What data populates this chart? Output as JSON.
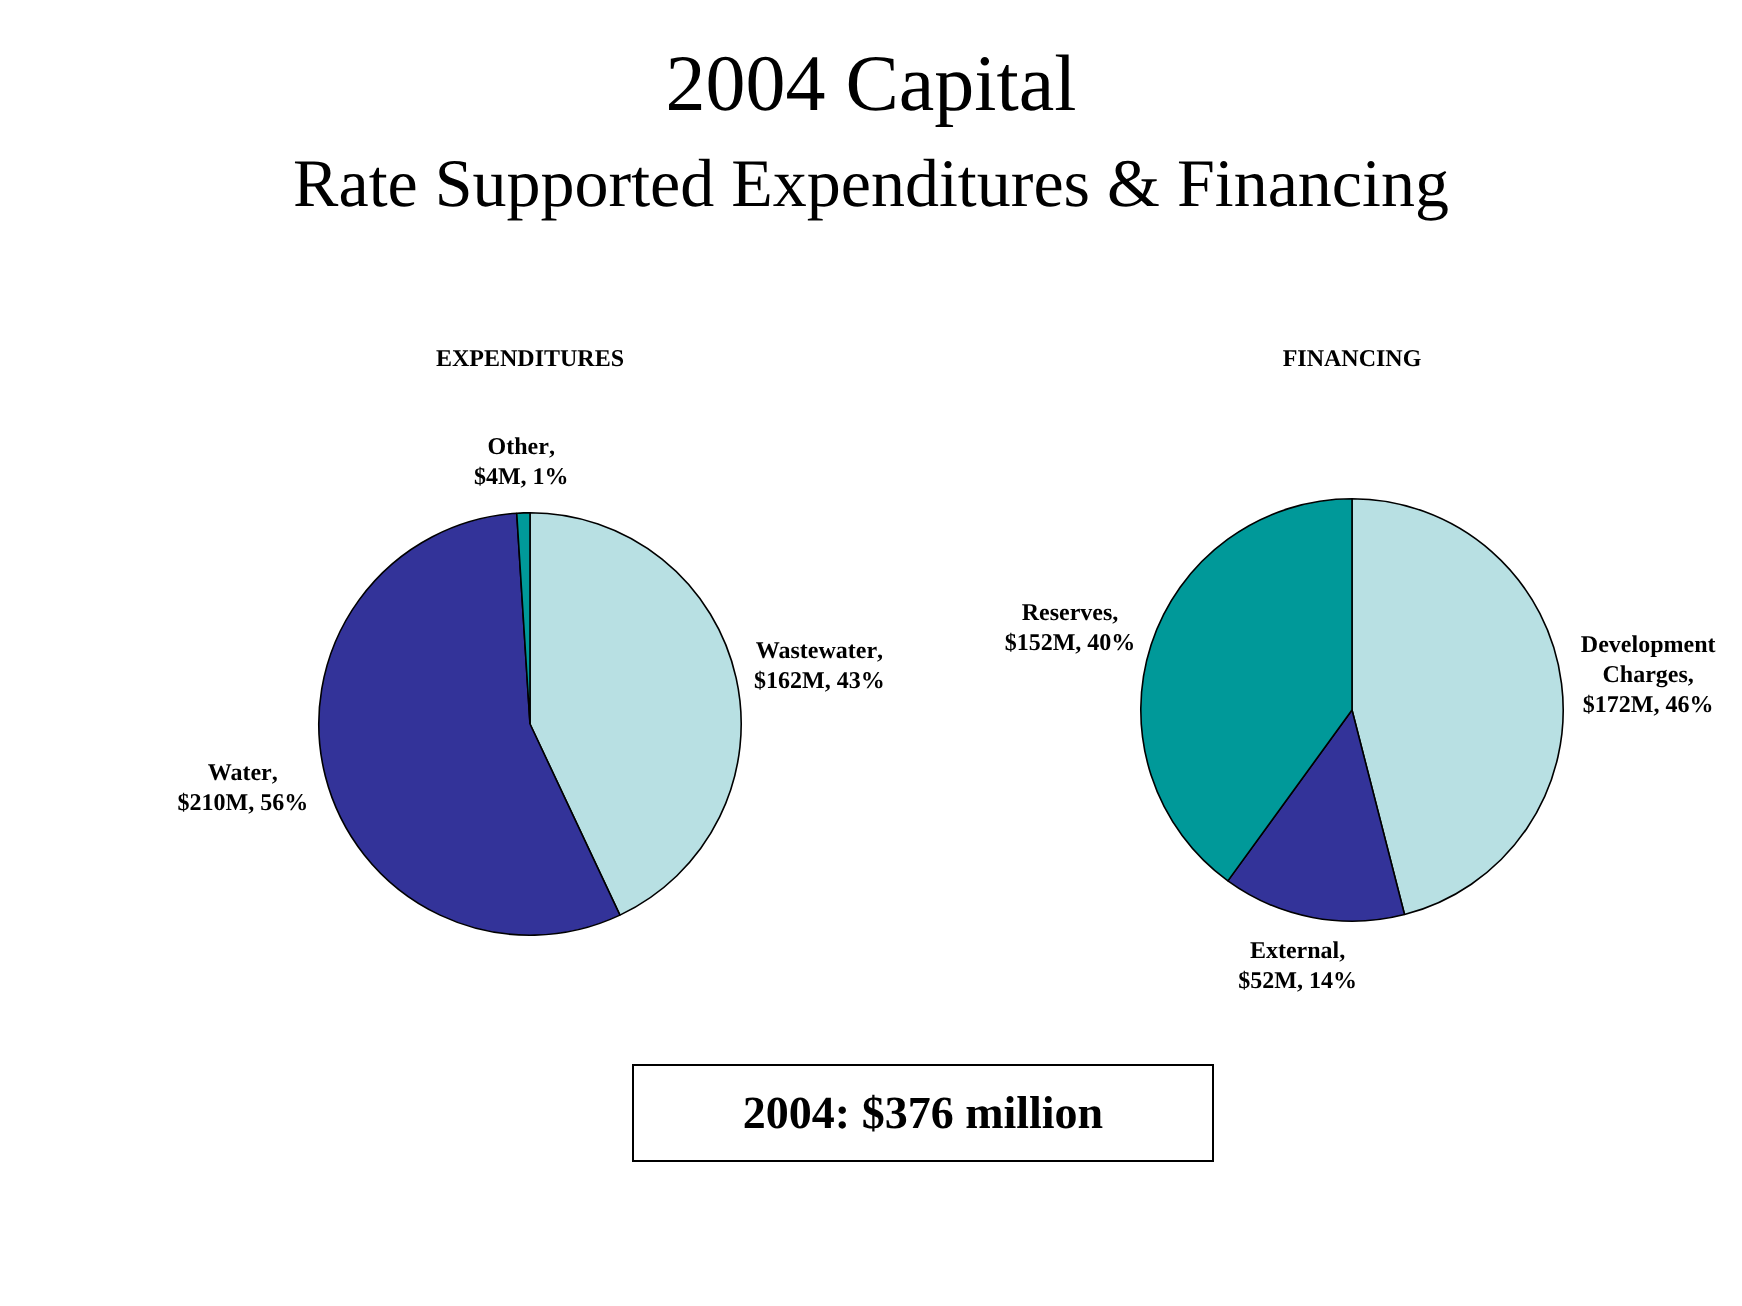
{
  "chart_data": [
    {
      "type": "other",
      "title": "2004 Capital",
      "subtitle": "Rate Supported Expenditures & Financing",
      "annotations": [
        "2004: $376 million"
      ]
    },
    {
      "type": "pie",
      "title": "EXPENDITURES",
      "categories": [
        "Wastewater",
        "Water",
        "Other"
      ],
      "values": [
        43,
        56,
        1
      ],
      "colors": [
        "#b8e0e3",
        "#333399",
        "#009999"
      ],
      "value_labels": [
        ", $162M, 43%",
        ", $210M, 56%",
        ", $4M, 1%"
      ]
    },
    {
      "type": "pie",
      "title": "FINANCING",
      "categories": [
        "Development Charges",
        "External",
        "Reserves"
      ],
      "values": [
        46,
        14,
        40
      ],
      "colors": [
        "#b8e0e3",
        "#333399",
        "#009999"
      ],
      "value_labels": [
        ", $172M, 46%",
        ", $52M, 14%",
        ", $152M, 40%"
      ]
    }
  ]
}
